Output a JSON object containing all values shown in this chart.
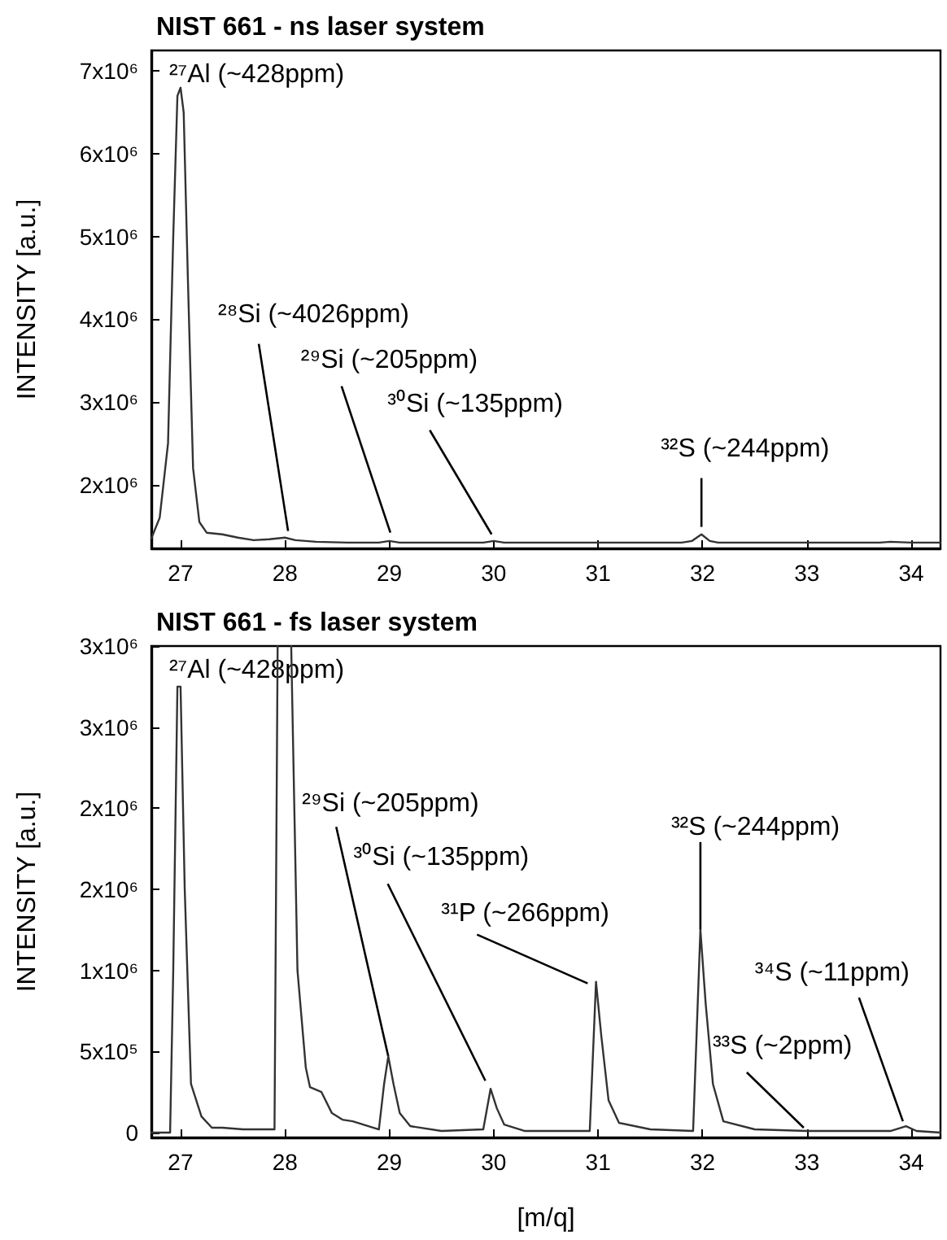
{
  "chart_data": [
    {
      "type": "line",
      "title": "NIST 661 - ns laser system",
      "ylabel": "INTENSITY [a.u.]",
      "x": [
        26.72,
        26.8,
        26.88,
        26.93,
        26.97,
        27.0,
        27.03,
        27.07,
        27.12,
        27.18,
        27.25,
        27.4,
        27.55,
        27.7,
        27.85,
        28.0,
        28.1,
        28.3,
        28.6,
        28.9,
        29.0,
        29.1,
        29.5,
        29.9,
        30.0,
        30.1,
        31.0,
        31.8,
        31.9,
        31.99,
        32.07,
        32.15,
        33.0,
        33.7,
        33.8,
        34.0,
        34.28
      ],
      "series": [
        {
          "color": "#333333",
          "values": [
            1350000,
            1600000,
            2500000,
            5000000,
            6700000,
            6800000,
            6500000,
            4500000,
            2200000,
            1550000,
            1420000,
            1400000,
            1360000,
            1330000,
            1340000,
            1360000,
            1330000,
            1310000,
            1300000,
            1300000,
            1320000,
            1300000,
            1300000,
            1300000,
            1320000,
            1300000,
            1300000,
            1300000,
            1320000,
            1400000,
            1320000,
            1300000,
            1300000,
            1300000,
            1310000,
            1300000,
            1300000
          ]
        }
      ],
      "xlim": [
        26.72,
        34.28
      ],
      "xticks": [
        27,
        28,
        29,
        30,
        31,
        32,
        33,
        34
      ],
      "ylim": [
        1230000,
        7250000
      ],
      "yticks": [
        {
          "value": 2000000,
          "label": "2x10⁶"
        },
        {
          "value": 3000000,
          "label": "3x10⁶"
        },
        {
          "value": 4000000,
          "label": "4x10⁶"
        },
        {
          "value": 5000000,
          "label": "5x10⁶"
        },
        {
          "value": 6000000,
          "label": "6x10⁶"
        },
        {
          "value": 7000000,
          "label": "7x10⁶"
        }
      ],
      "annotations": [
        {
          "text": "²⁷Al (~428ppm)",
          "x": 27.0,
          "y": 6800000
        },
        {
          "text": "²⁸Si (~4026ppm)",
          "x": 28.03,
          "y": 1440000
        },
        {
          "text": "²⁹Si (~205ppm)",
          "x": 29.01,
          "y": 1420000
        },
        {
          "text": "³⁰Si (~135ppm)",
          "x": 29.98,
          "y": 1400000
        },
        {
          "text": "³²S (~244ppm)",
          "x": 31.99,
          "y": 1490000
        }
      ],
      "grid": false,
      "marker": "none",
      "line_style": "solid"
    },
    {
      "type": "line",
      "title": "NIST 661 - fs laser system",
      "xlabel": "[m/q]",
      "ylabel": "INTENSITY [a.u.]",
      "x": [
        26.72,
        26.9,
        26.93,
        26.97,
        27.0,
        27.04,
        27.1,
        27.2,
        27.3,
        27.4,
        27.6,
        27.9,
        27.93,
        27.97,
        28.06,
        28.12,
        28.2,
        28.24,
        28.35,
        28.45,
        28.55,
        28.65,
        28.8,
        28.9,
        28.95,
        28.99,
        29.04,
        29.1,
        29.2,
        29.5,
        29.9,
        29.97,
        30.03,
        30.1,
        30.3,
        30.92,
        30.98,
        31.03,
        31.1,
        31.2,
        31.5,
        31.91,
        31.98,
        32.03,
        32.1,
        32.2,
        32.5,
        33.0,
        33.8,
        33.95,
        34.05,
        34.28
      ],
      "series": [
        {
          "color": "#333333",
          "values": [
            0,
            0,
            1000000,
            2750000,
            2750000,
            1500000,
            300000,
            100000,
            30000,
            30000,
            20000,
            20000,
            3000000,
            null,
            3000000,
            1000000,
            400000,
            280000,
            250000,
            120000,
            80000,
            70000,
            40000,
            20000,
            300000,
            470000,
            300000,
            120000,
            40000,
            10000,
            20000,
            270000,
            150000,
            50000,
            10000,
            10000,
            930000,
            600000,
            200000,
            60000,
            20000,
            10000,
            1250000,
            800000,
            300000,
            70000,
            20000,
            10000,
            10000,
            40000,
            10000,
            0
          ]
        }
      ],
      "xlim": [
        26.72,
        34.28
      ],
      "xticks": [
        27,
        28,
        29,
        30,
        31,
        32,
        33,
        34
      ],
      "ylim": [
        -30000,
        3000000
      ],
      "yticks": [
        0,
        {
          "value": 500000,
          "label": "5x10⁵"
        },
        {
          "value": 1000000,
          "label": "1x10⁶"
        },
        {
          "value": 1500000,
          "label": "2x10⁶"
        },
        {
          "value": 2000000,
          "label": "2x10⁶"
        },
        {
          "value": 2500000,
          "label": "3x10⁶"
        },
        {
          "value": 3000000,
          "label": "3x10⁶"
        }
      ],
      "annotations": [
        {
          "text": "²⁷Al (~428ppm)",
          "x": 27.0,
          "y": 2750000
        },
        {
          "text": "²⁹Si (~205ppm)",
          "x": 28.99,
          "y": 470000
        },
        {
          "text": "³⁰Si (~135ppm)",
          "x": 29.92,
          "y": 320000
        },
        {
          "text": "³¹P (~266ppm)",
          "x": 30.9,
          "y": 920000
        },
        {
          "text": "³²S (~244ppm)",
          "x": 31.98,
          "y": 1250000
        },
        {
          "text": "³³S (~2ppm)",
          "x": 32.97,
          "y": 30000
        },
        {
          "text": "³⁴S (~11ppm)",
          "x": 33.92,
          "y": 70000
        }
      ],
      "grid": false,
      "marker": "none",
      "line_style": "solid"
    }
  ]
}
